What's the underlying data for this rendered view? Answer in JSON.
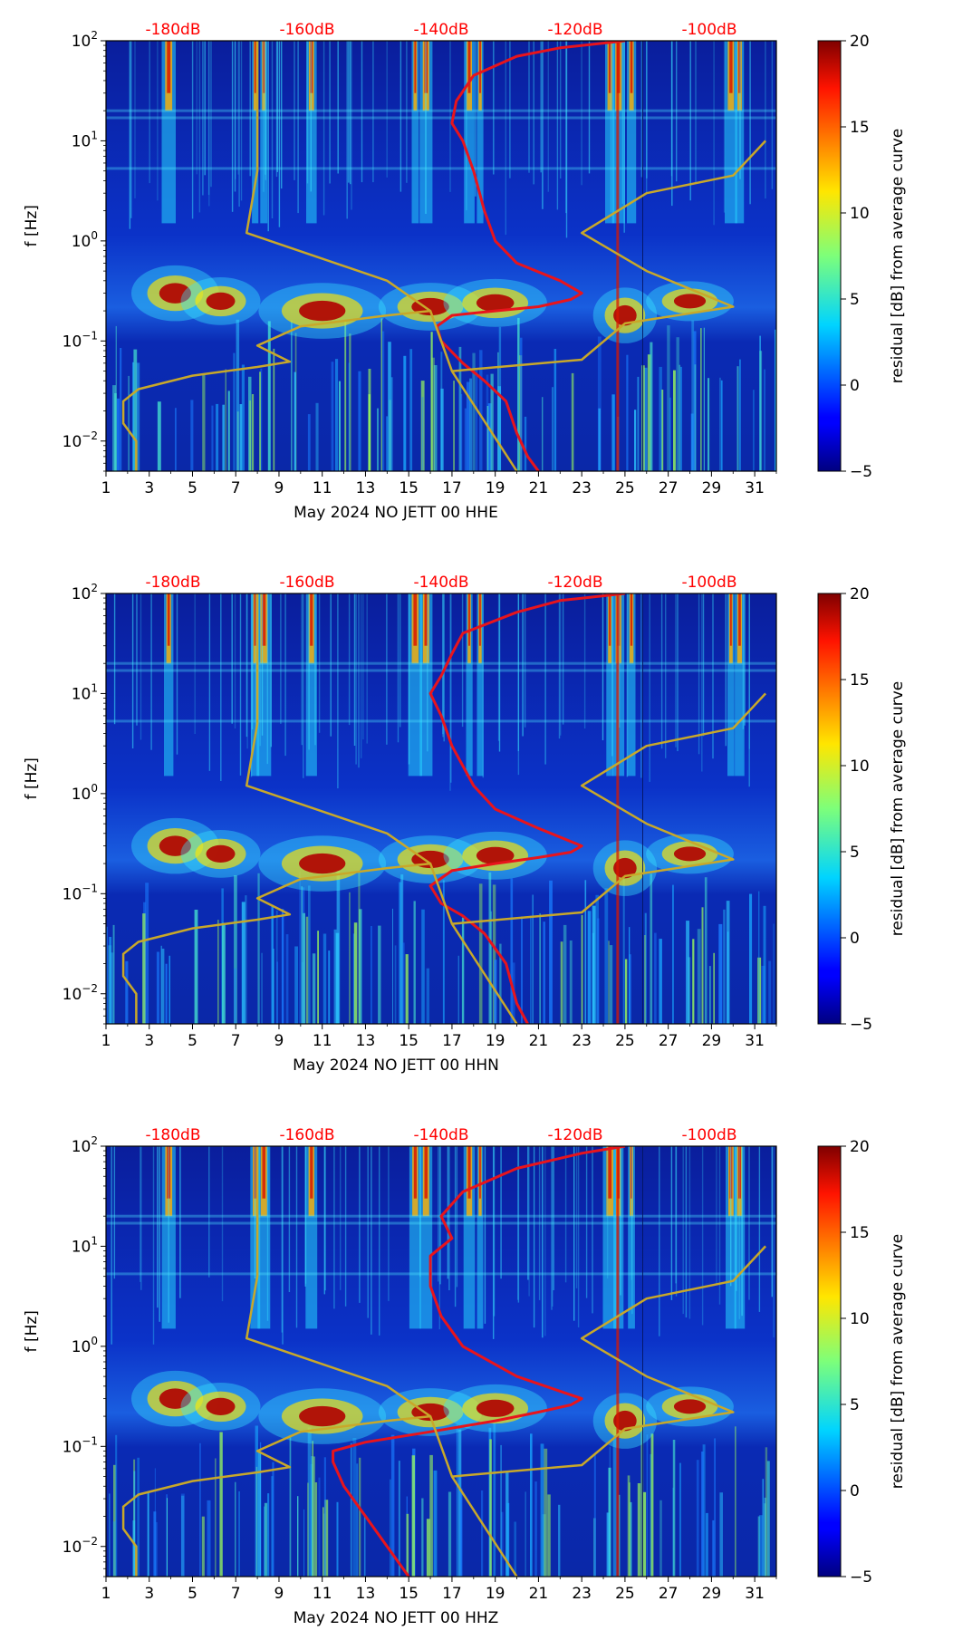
{
  "figure": {
    "colorbar_label": "residual [dB] from average curve",
    "colors": {
      "curve": "#e8141c",
      "noise_model": "#c8a82a",
      "db_label": "#ff0000"
    }
  },
  "chart_data": [
    {
      "type": "heatmap",
      "title": "",
      "xlabel": "May 2024 NO JETT 00 HHE",
      "ylabel": "f [Hz]",
      "x_ticks": [
        "1",
        "3",
        "5",
        "7",
        "9",
        "11",
        "13",
        "15",
        "17",
        "19",
        "21",
        "23",
        "25",
        "27",
        "29",
        "31"
      ],
      "xlim": [
        1,
        32
      ],
      "ylim": [
        0.005,
        100
      ],
      "y_scale": "log",
      "y_ticks": [
        {
          "value": 100,
          "base": "10",
          "exp": "2"
        },
        {
          "value": 10,
          "base": "10",
          "exp": "1"
        },
        {
          "value": 1,
          "base": "10",
          "exp": "0"
        },
        {
          "value": 0.1,
          "base": "10",
          "exp": "−1"
        },
        {
          "value": 0.01,
          "base": "10",
          "exp": "−2"
        }
      ],
      "db_axis_labels": [
        "-180dB",
        "-160dB",
        "-140dB",
        "-120dB",
        "-100dB"
      ],
      "colorbar": {
        "min": -5,
        "max": 20,
        "ticks": [
          "−5",
          "0",
          "5",
          "10",
          "15",
          "20"
        ]
      },
      "series": [
        {
          "name": "average PSD curve",
          "color": "#e8141c",
          "points": [
            [
              21,
              0.005
            ],
            [
              20.5,
              0.007
            ],
            [
              20,
              0.012
            ],
            [
              19.5,
              0.025
            ],
            [
              18.5,
              0.04
            ],
            [
              17.5,
              0.06
            ],
            [
              16.5,
              0.1
            ],
            [
              16.3,
              0.14
            ],
            [
              17,
              0.18
            ],
            [
              19,
              0.2
            ],
            [
              21,
              0.22
            ],
            [
              22.5,
              0.26
            ],
            [
              23,
              0.3
            ],
            [
              22,
              0.4
            ],
            [
              20,
              0.6
            ],
            [
              19,
              1
            ],
            [
              18.5,
              2
            ],
            [
              18,
              5
            ],
            [
              17.5,
              10
            ],
            [
              17,
              15
            ],
            [
              17.2,
              25
            ],
            [
              18,
              45
            ],
            [
              20,
              70
            ],
            [
              22,
              85
            ],
            [
              25,
              100
            ]
          ]
        },
        {
          "name": "noise model",
          "color": "#c8a82a",
          "points": [
            [
              2.4,
              0.005
            ],
            [
              2.4,
              0.01
            ],
            [
              1.8,
              0.015
            ],
            [
              1.8,
              0.025
            ],
            [
              2.5,
              0.033
            ],
            [
              5,
              0.045
            ],
            [
              8,
              0.055
            ],
            [
              9.5,
              0.062
            ],
            [
              8,
              0.09
            ],
            [
              10,
              0.14
            ],
            [
              14,
              0.18
            ],
            [
              16,
              0.2
            ],
            [
              14,
              0.4
            ],
            [
              7.5,
              1.2
            ],
            [
              8,
              5
            ],
            [
              8,
              100
            ],
            [
              8,
              5
            ],
            [
              7.5,
              1.2
            ],
            [
              14,
              0.4
            ],
            [
              16,
              0.2
            ],
            [
              17,
              0.05
            ],
            [
              20,
              0.005
            ]
          ]
        },
        {
          "name": "noise model high",
          "color": "#c8a82a",
          "points": [
            [
              17,
              0.05
            ],
            [
              23,
              0.065
            ],
            [
              25,
              0.15
            ],
            [
              30,
              0.22
            ],
            [
              26,
              0.5
            ],
            [
              23,
              1.2
            ],
            [
              26,
              3
            ],
            [
              30,
              4.5
            ],
            [
              31.5,
              10
            ]
          ]
        }
      ]
    },
    {
      "type": "heatmap",
      "title": "",
      "xlabel": "May 2024 NO JETT 00 HHN",
      "ylabel": "f [Hz]",
      "x_ticks": [
        "1",
        "3",
        "5",
        "7",
        "9",
        "11",
        "13",
        "15",
        "17",
        "19",
        "21",
        "23",
        "25",
        "27",
        "29",
        "31"
      ],
      "xlim": [
        1,
        32
      ],
      "ylim": [
        0.005,
        100
      ],
      "y_scale": "log",
      "y_ticks": [
        {
          "value": 100,
          "base": "10",
          "exp": "2"
        },
        {
          "value": 10,
          "base": "10",
          "exp": "1"
        },
        {
          "value": 1,
          "base": "10",
          "exp": "0"
        },
        {
          "value": 0.1,
          "base": "10",
          "exp": "−1"
        },
        {
          "value": 0.01,
          "base": "10",
          "exp": "−2"
        }
      ],
      "db_axis_labels": [
        "-180dB",
        "-160dB",
        "-140dB",
        "-120dB",
        "-100dB"
      ],
      "colorbar": {
        "min": -5,
        "max": 20,
        "ticks": [
          "−5",
          "0",
          "5",
          "10",
          "15",
          "20"
        ]
      },
      "series": [
        {
          "name": "average PSD curve",
          "color": "#e8141c",
          "points": [
            [
              20.5,
              0.005
            ],
            [
              20,
              0.008
            ],
            [
              19.5,
              0.02
            ],
            [
              18.5,
              0.04
            ],
            [
              17.5,
              0.06
            ],
            [
              16.5,
              0.08
            ],
            [
              16,
              0.12
            ],
            [
              17,
              0.17
            ],
            [
              19,
              0.2
            ],
            [
              21,
              0.23
            ],
            [
              22.5,
              0.26
            ],
            [
              23,
              0.3
            ],
            [
              21,
              0.45
            ],
            [
              19,
              0.7
            ],
            [
              18,
              1.2
            ],
            [
              17,
              3
            ],
            [
              16.5,
              6
            ],
            [
              16,
              10
            ],
            [
              16.5,
              15
            ],
            [
              17,
              25
            ],
            [
              17.5,
              40
            ],
            [
              20,
              65
            ],
            [
              22,
              85
            ],
            [
              25,
              100
            ]
          ]
        },
        {
          "name": "noise model",
          "color": "#c8a82a",
          "points": [
            [
              2.4,
              0.005
            ],
            [
              2.4,
              0.01
            ],
            [
              1.8,
              0.015
            ],
            [
              1.8,
              0.025
            ],
            [
              2.5,
              0.033
            ],
            [
              5,
              0.045
            ],
            [
              8,
              0.055
            ],
            [
              9.5,
              0.062
            ],
            [
              8,
              0.09
            ],
            [
              10,
              0.14
            ],
            [
              14,
              0.18
            ],
            [
              16,
              0.2
            ],
            [
              14,
              0.4
            ],
            [
              7.5,
              1.2
            ],
            [
              8,
              5
            ],
            [
              8,
              100
            ],
            [
              8,
              5
            ],
            [
              7.5,
              1.2
            ],
            [
              14,
              0.4
            ],
            [
              16,
              0.2
            ],
            [
              17,
              0.05
            ],
            [
              20,
              0.005
            ]
          ]
        },
        {
          "name": "noise model high",
          "color": "#c8a82a",
          "points": [
            [
              17,
              0.05
            ],
            [
              23,
              0.065
            ],
            [
              25,
              0.15
            ],
            [
              30,
              0.22
            ],
            [
              26,
              0.5
            ],
            [
              23,
              1.2
            ],
            [
              26,
              3
            ],
            [
              30,
              4.5
            ],
            [
              31.5,
              10
            ]
          ]
        }
      ]
    },
    {
      "type": "heatmap",
      "title": "",
      "xlabel": "May 2024 NO JETT 00 HHZ",
      "ylabel": "f [Hz]",
      "x_ticks": [
        "1",
        "3",
        "5",
        "7",
        "9",
        "11",
        "13",
        "15",
        "17",
        "19",
        "21",
        "23",
        "25",
        "27",
        "29",
        "31"
      ],
      "xlim": [
        1,
        32
      ],
      "ylim": [
        0.005,
        100
      ],
      "y_scale": "log",
      "y_ticks": [
        {
          "value": 100,
          "base": "10",
          "exp": "2"
        },
        {
          "value": 10,
          "base": "10",
          "exp": "1"
        },
        {
          "value": 1,
          "base": "10",
          "exp": "0"
        },
        {
          "value": 0.1,
          "base": "10",
          "exp": "−1"
        },
        {
          "value": 0.01,
          "base": "10",
          "exp": "−2"
        }
      ],
      "db_axis_labels": [
        "-180dB",
        "-160dB",
        "-140dB",
        "-120dB",
        "-100dB"
      ],
      "colorbar": {
        "min": -5,
        "max": 20,
        "ticks": [
          "−5",
          "0",
          "5",
          "10",
          "15",
          "20"
        ]
      },
      "series": [
        {
          "name": "average PSD curve",
          "color": "#e8141c",
          "points": [
            [
              15,
              0.005
            ],
            [
              14,
              0.01
            ],
            [
              13,
              0.02
            ],
            [
              12,
              0.04
            ],
            [
              11.5,
              0.07
            ],
            [
              11.5,
              0.09
            ],
            [
              13,
              0.11
            ],
            [
              16,
              0.14
            ],
            [
              19,
              0.18
            ],
            [
              21,
              0.22
            ],
            [
              22.5,
              0.26
            ],
            [
              23,
              0.3
            ],
            [
              20,
              0.5
            ],
            [
              17.5,
              1
            ],
            [
              16.5,
              2
            ],
            [
              16,
              4
            ],
            [
              16,
              8
            ],
            [
              17,
              12
            ],
            [
              16.5,
              20
            ],
            [
              17.5,
              35
            ],
            [
              20,
              60
            ],
            [
              23,
              85
            ],
            [
              25,
              100
            ]
          ]
        },
        {
          "name": "noise model",
          "color": "#c8a82a",
          "points": [
            [
              2.4,
              0.005
            ],
            [
              2.4,
              0.01
            ],
            [
              1.8,
              0.015
            ],
            [
              1.8,
              0.025
            ],
            [
              2.5,
              0.033
            ],
            [
              5,
              0.045
            ],
            [
              8,
              0.055
            ],
            [
              9.5,
              0.062
            ],
            [
              8,
              0.09
            ],
            [
              10,
              0.14
            ],
            [
              14,
              0.18
            ],
            [
              16,
              0.2
            ],
            [
              14,
              0.4
            ],
            [
              7.5,
              1.2
            ],
            [
              8,
              5
            ],
            [
              8,
              100
            ],
            [
              8,
              5
            ],
            [
              7.5,
              1.2
            ],
            [
              14,
              0.4
            ],
            [
              16,
              0.2
            ],
            [
              17,
              0.05
            ],
            [
              20,
              0.005
            ]
          ]
        },
        {
          "name": "noise model high",
          "color": "#c8a82a",
          "points": [
            [
              17,
              0.05
            ],
            [
              23,
              0.065
            ],
            [
              25,
              0.15
            ],
            [
              30,
              0.22
            ],
            [
              26,
              0.5
            ],
            [
              23,
              1.2
            ],
            [
              26,
              3
            ],
            [
              30,
              4.5
            ],
            [
              31.5,
              10
            ]
          ]
        }
      ]
    }
  ]
}
